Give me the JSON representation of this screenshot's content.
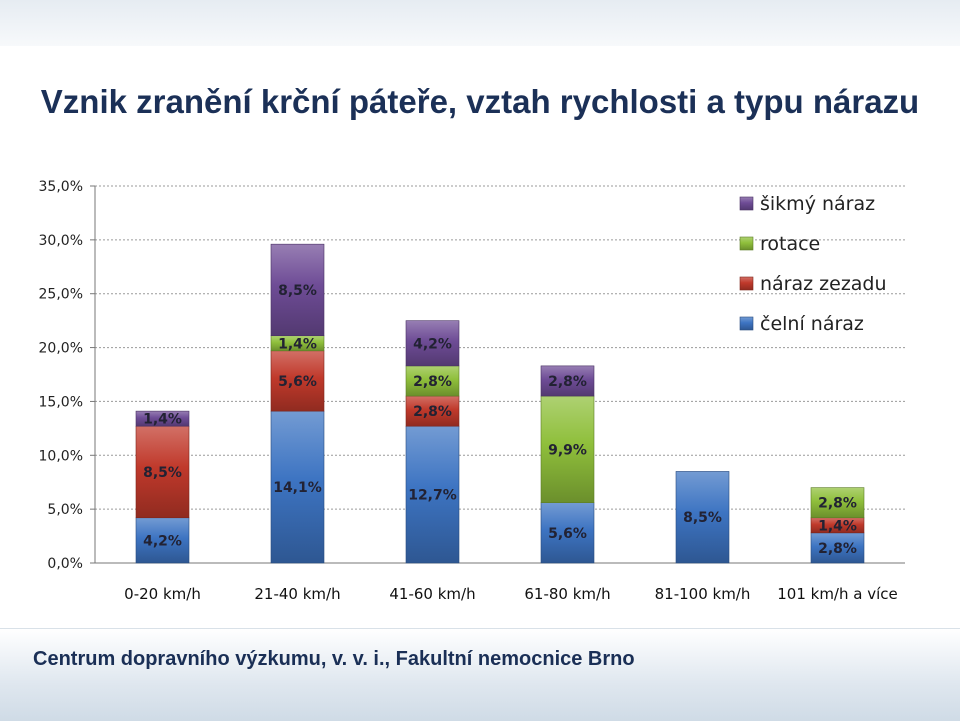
{
  "colors": {
    "celni": "#3d74c2",
    "zezadu": "#c0392b",
    "rotace": "#8fbf3b",
    "sikmy": "#6e4c96"
  },
  "chart_data": {
    "type": "bar",
    "stacked": true,
    "title": "Vznik zranění krční páteře, vztah rychlosti a typu nárazu",
    "categories": [
      "0-20 km/h",
      "21-40 km/h",
      "41-60 km/h",
      "61-80 km/h",
      "81-100 km/h",
      "101 km/h a více"
    ],
    "series": [
      {
        "name": "čelní náraz",
        "color": "#3d74c2",
        "values": [
          4.2,
          14.1,
          12.7,
          5.6,
          8.5,
          2.8
        ],
        "labels": [
          "4,2%",
          "14,1%",
          "12,7%",
          "5,6%",
          "8,5%",
          "2,8%"
        ]
      },
      {
        "name": "náraz zezadu",
        "color": "#c0392b",
        "values": [
          8.5,
          5.6,
          2.8,
          0,
          0,
          1.4
        ],
        "labels": [
          "8,5%",
          "5,6%",
          "2,8%",
          "",
          "",
          "1,4%"
        ]
      },
      {
        "name": "rotace",
        "color": "#8fbf3b",
        "values": [
          0,
          1.4,
          2.8,
          9.9,
          0,
          2.8
        ],
        "labels": [
          "",
          "1,4%",
          "2,8%",
          "9,9%",
          "",
          "2,8%"
        ]
      },
      {
        "name": "šikmý náraz",
        "color": "#6e4c96",
        "values": [
          1.4,
          8.5,
          4.2,
          2.8,
          0,
          0
        ],
        "labels": [
          "1,4%",
          "8,5%",
          "4,2%",
          "2,8%",
          "",
          ""
        ]
      }
    ],
    "ylim": [
      0,
      35
    ],
    "yticks": [
      0,
      5,
      10,
      15,
      20,
      25,
      30,
      35
    ],
    "ytick_labels": [
      "0,0%",
      "5,0%",
      "10,0%",
      "15,0%",
      "20,0%",
      "25,0%",
      "30,0%",
      "35,0%"
    ],
    "grid": true,
    "legend_position": "top-right",
    "legend_order": [
      "šikmý náraz",
      "rotace",
      "náraz zezadu",
      "čelní náraz"
    ]
  },
  "footer": {
    "text": "Centrum dopravního výzkumu, v. v. i., Fakultní nemocnice Brno"
  }
}
